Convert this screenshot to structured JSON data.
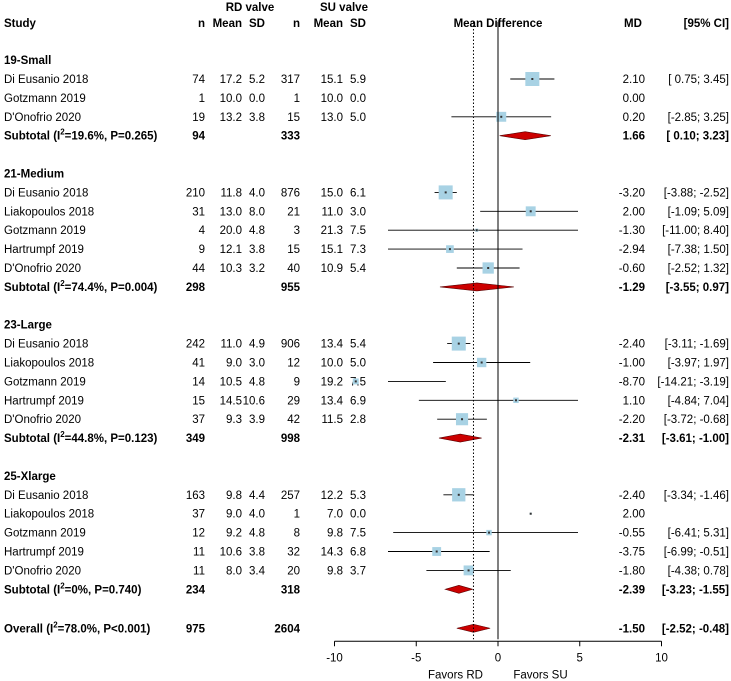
{
  "chart_data": {
    "type": "forest",
    "group_headers": {
      "rd": "RD valve",
      "su": "SU valve"
    },
    "columns": {
      "study": "Study",
      "n": "n",
      "mean": "Mean",
      "sd": "SD",
      "effect": "Mean Difference",
      "md": "MD",
      "ci": "[95% CI]"
    },
    "x_axis": {
      "range": [
        -10,
        10
      ],
      "ticks": [
        -10,
        -5,
        0,
        5,
        10
      ],
      "tick_labels": [
        "-10",
        "-5",
        "0",
        "5",
        "10"
      ],
      "left_label": "Favors RD",
      "right_label": "Favors SU",
      "reference_line": 0,
      "overall_dotted_line": -1.5
    },
    "subgroups": [
      {
        "name": "19-Small",
        "studies": [
          {
            "study": "Di Eusanio 2018",
            "n1": "74",
            "mean1": "17.2",
            "sd1": "5.2",
            "n2": "317",
            "mean2": "15.1",
            "sd2": "5.9",
            "md": 2.1,
            "lo": 0.75,
            "hi": 3.45,
            "md_text": "2.10",
            "ci_text": "[ 0.75; 3.45]",
            "weight": 1.0
          },
          {
            "study": "Gotzmann 2019",
            "n1": "1",
            "mean1": "10.0",
            "sd1": "0.0",
            "n2": "1",
            "mean2": "10.0",
            "sd2": "0.0",
            "md": null,
            "lo": null,
            "hi": null,
            "md_text": "0.00",
            "ci_text": "",
            "weight": 0
          },
          {
            "study": "D'Onofrio 2020",
            "n1": "19",
            "mean1": "13.2",
            "sd1": "3.8",
            "n2": "15",
            "mean2": "13.0",
            "sd2": "5.0",
            "md": 0.2,
            "lo": -2.85,
            "hi": 3.25,
            "md_text": "0.20",
            "ci_text": "[-2.85; 3.25]",
            "weight": 0.5
          }
        ],
        "subtotal": {
          "label": "Subtotal (I",
          "label_tail": "=19.6%, P=0.265)",
          "n1": "94",
          "n2": "333",
          "md": 1.66,
          "lo": 0.1,
          "hi": 3.23,
          "md_text": "1.66",
          "ci_text": "[ 0.10; 3.23]"
        }
      },
      {
        "name": "21-Medium",
        "studies": [
          {
            "study": "Di Eusanio 2018",
            "n1": "210",
            "mean1": "11.8",
            "sd1": "4.0",
            "n2": "876",
            "mean2": "15.0",
            "sd2": "6.1",
            "md": -3.2,
            "lo": -3.88,
            "hi": -2.52,
            "md_text": "-3.20",
            "ci_text": "[-3.88; -2.52]",
            "weight": 1.0
          },
          {
            "study": "Liakopoulos 2018",
            "n1": "31",
            "mean1": "13.0",
            "sd1": "8.0",
            "n2": "21",
            "mean2": "11.0",
            "sd2": "3.0",
            "md": 2.0,
            "lo": -1.09,
            "hi": 5.09,
            "md_text": "2.00",
            "ci_text": "[-1.09; 5.09]",
            "weight": 0.5
          },
          {
            "study": "Gotzmann 2019",
            "n1": "4",
            "mean1": "20.0",
            "sd1": "4.8",
            "n2": "3",
            "mean2": "21.3",
            "sd2": "7.5",
            "md": -1.3,
            "lo": -11.0,
            "hi": 8.4,
            "md_text": "-1.30",
            "ci_text": "[-11.00; 8.40]",
            "weight": 0.05
          },
          {
            "study": "Hartrumpf 2019",
            "n1": "9",
            "mean1": "12.1",
            "sd1": "3.8",
            "n2": "15",
            "mean2": "15.1",
            "sd2": "7.3",
            "md": -2.94,
            "lo": -7.38,
            "hi": 1.5,
            "md_text": "-2.94",
            "ci_text": "[-7.38; 1.50]",
            "weight": 0.3
          },
          {
            "study": "D'Onofrio 2020",
            "n1": "44",
            "mean1": "10.3",
            "sd1": "3.2",
            "n2": "40",
            "mean2": "10.9",
            "sd2": "5.4",
            "md": -0.6,
            "lo": -2.52,
            "hi": 1.32,
            "md_text": "-0.60",
            "ci_text": "[-2.52; 1.32]",
            "weight": 0.65
          }
        ],
        "subtotal": {
          "label": "Subtotal (I",
          "label_tail": "=74.4%, P=0.004)",
          "n1": "298",
          "n2": "955",
          "md": -1.29,
          "lo": -3.55,
          "hi": 0.97,
          "md_text": "-1.29",
          "ci_text": "[-3.55; 0.97]"
        }
      },
      {
        "name": "23-Large",
        "studies": [
          {
            "study": "Di Eusanio 2018",
            "n1": "242",
            "mean1": "11.0",
            "sd1": "4.9",
            "n2": "906",
            "mean2": "13.4",
            "sd2": "5.4",
            "md": -2.4,
            "lo": -3.11,
            "hi": -1.69,
            "md_text": "-2.40",
            "ci_text": "[-3.11; -1.69]",
            "weight": 1.0
          },
          {
            "study": "Liakopoulos 2018",
            "n1": "41",
            "mean1": "9.0",
            "sd1": "3.0",
            "n2": "12",
            "mean2": "10.0",
            "sd2": "5.0",
            "md": -1.0,
            "lo": -3.97,
            "hi": 1.97,
            "md_text": "-1.00",
            "ci_text": "[-3.97; 1.97]",
            "weight": 0.45
          },
          {
            "study": "Gotzmann 2019",
            "n1": "14",
            "mean1": "10.5",
            "sd1": "4.8",
            "n2": "9",
            "mean2": "19.2",
            "sd2": "7.5",
            "md": -8.7,
            "lo": -14.21,
            "hi": -3.19,
            "md_text": "-8.70",
            "ci_text": "[-14.21; -3.19]",
            "weight": 0.18
          },
          {
            "study": "Hartrumpf 2019",
            "n1": "15",
            "mean1": "14.5",
            "sd1": "10.6",
            "n2": "29",
            "mean2": "13.4",
            "sd2": "6.9",
            "md": 1.1,
            "lo": -4.84,
            "hi": 7.04,
            "md_text": "1.10",
            "ci_text": "[-4.84; 7.04]",
            "weight": 0.15
          },
          {
            "study": "D'Onofrio 2020",
            "n1": "37",
            "mean1": "9.3",
            "sd1": "3.9",
            "n2": "42",
            "mean2": "11.5",
            "sd2": "2.8",
            "md": -2.2,
            "lo": -3.72,
            "hi": -0.68,
            "md_text": "-2.20",
            "ci_text": "[-3.72; -0.68]",
            "weight": 0.75
          }
        ],
        "subtotal": {
          "label": "Subtotal (I",
          "label_tail": "=44.8%, P=0.123)",
          "n1": "349",
          "n2": "998",
          "md": -2.31,
          "lo": -3.61,
          "hi": -1.0,
          "md_text": "-2.31",
          "ci_text": "[-3.61; -1.00]"
        }
      },
      {
        "name": "25-Xlarge",
        "studies": [
          {
            "study": "Di Eusanio 2018",
            "n1": "163",
            "mean1": "9.8",
            "sd1": "4.4",
            "n2": "257",
            "mean2": "12.2",
            "sd2": "5.3",
            "md": -2.4,
            "lo": -3.34,
            "hi": -1.46,
            "md_text": "-2.40",
            "ci_text": "[-3.34; -1.46]",
            "weight": 0.9
          },
          {
            "study": "Liakopoulos 2018",
            "n1": "37",
            "mean1": "9.0",
            "sd1": "4.0",
            "n2": "1",
            "mean2": "7.0",
            "sd2": "0.0",
            "md": 2.0,
            "lo": null,
            "hi": null,
            "md_text": "2.00",
            "ci_text": "",
            "weight": 0.02
          },
          {
            "study": "Gotzmann 2019",
            "n1": "12",
            "mean1": "9.2",
            "sd1": "4.8",
            "n2": "8",
            "mean2": "9.8",
            "sd2": "7.5",
            "md": -0.55,
            "lo": -6.41,
            "hi": 5.31,
            "md_text": "-0.55",
            "ci_text": "[-6.41; 5.31]",
            "weight": 0.15
          },
          {
            "study": "Hartrumpf 2019",
            "n1": "11",
            "mean1": "10.6",
            "sd1": "3.8",
            "n2": "32",
            "mean2": "14.3",
            "sd2": "6.8",
            "md": -3.75,
            "lo": -6.99,
            "hi": -0.51,
            "md_text": "-3.75",
            "ci_text": "[-6.99; -0.51]",
            "weight": 0.4
          },
          {
            "study": "D'Onofrio 2020",
            "n1": "11",
            "mean1": "8.0",
            "sd1": "3.4",
            "n2": "20",
            "mean2": "9.8",
            "sd2": "3.7",
            "md": -1.8,
            "lo": -4.38,
            "hi": 0.78,
            "md_text": "-1.80",
            "ci_text": "[-4.38; 0.78]",
            "weight": 0.5
          }
        ],
        "subtotal": {
          "label": "Subtotal (I",
          "label_tail": "=0%, P=0.740)",
          "n1": "234",
          "n2": "318",
          "md": -2.39,
          "lo": -3.23,
          "hi": -1.55,
          "md_text": "-2.39",
          "ci_text": "[-3.23; -1.55]"
        }
      }
    ],
    "overall": {
      "label": "Overall (I",
      "label_tail": "=78.0%, P<0.001)",
      "n1": "975",
      "n2": "2604",
      "md": -1.5,
      "lo": -2.52,
      "hi": -0.48,
      "md_text": "-1.50",
      "ci_text": "[-2.52; -0.48]"
    },
    "colors": {
      "square": "#a8d2e4",
      "diamond": "#cc0000",
      "line": "#000000"
    }
  }
}
